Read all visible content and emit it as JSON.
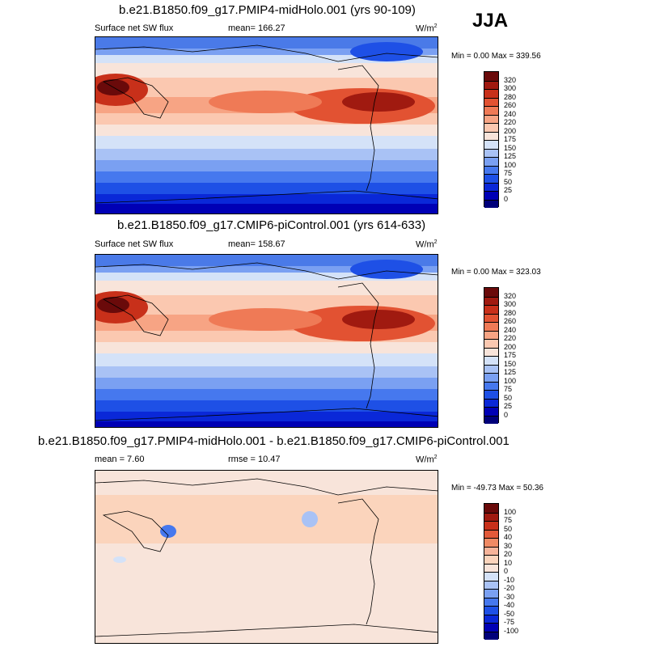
{
  "season": "JJA",
  "panels": [
    {
      "title": "b.e21.B1850.f09_g17.PMIP4-midHolo.001 (yrs 90-109)",
      "left_label": "Surface net SW flux",
      "center_label": "mean= 166.27",
      "units": "W/m",
      "units_sup": "2",
      "minmax": "Min =   0.00 Max = 339.56"
    },
    {
      "title": "b.e21.B1850.f09_g17.CMIP6-piControl.001 (yrs 614-633)",
      "left_label": "Surface net SW flux",
      "center_label": "mean= 158.67",
      "units": "W/m",
      "units_sup": "2",
      "minmax": "Min =   0.00 Max = 323.03"
    },
    {
      "title": "b.e21.B1850.f09_g17.PMIP4-midHolo.001 - b.e21.B1850.f09_g17.CMIP6-piControl.001",
      "left_label": "mean =   7.60",
      "center_label": "rmse =  10.47",
      "units": "W/m",
      "units_sup": "2",
      "minmax": "Min = -49.73 Max =  50.36"
    }
  ],
  "chart_data": [
    {
      "type": "heatmap",
      "title": "b.e21.B1850.f09_g17.PMIP4-midHolo.001 (yrs 90-109)",
      "variable": "Surface net SW flux",
      "units": "W/m2",
      "mean": 166.27,
      "min": 0.0,
      "max": 339.56,
      "colorbar_levels": [
        0,
        25,
        50,
        75,
        100,
        125,
        150,
        175,
        200,
        220,
        240,
        260,
        280,
        300,
        320
      ],
      "colorbar_colors": [
        "#00007a",
        "#0000b5",
        "#0a28d8",
        "#1e50e6",
        "#4678ee",
        "#7aa0f2",
        "#a9c2f5",
        "#d4e2f8",
        "#f8e4da",
        "#fbc8b0",
        "#f7a484",
        "#ef7a56",
        "#e25232",
        "#c8301a",
        "#a01a10",
        "#6a0a0a"
      ]
    },
    {
      "type": "heatmap",
      "title": "b.e21.B1850.f09_g17.CMIP6-piControl.001 (yrs 614-633)",
      "variable": "Surface net SW flux",
      "units": "W/m2",
      "mean": 158.67,
      "min": 0.0,
      "max": 323.03,
      "colorbar_levels": [
        0,
        25,
        50,
        75,
        100,
        125,
        150,
        175,
        200,
        220,
        240,
        260,
        280,
        300,
        320
      ],
      "colorbar_colors": [
        "#00007a",
        "#0000b5",
        "#0a28d8",
        "#1e50e6",
        "#4678ee",
        "#7aa0f2",
        "#a9c2f5",
        "#d4e2f8",
        "#f8e4da",
        "#fbc8b0",
        "#f7a484",
        "#ef7a56",
        "#e25232",
        "#c8301a",
        "#a01a10",
        "#6a0a0a"
      ]
    },
    {
      "type": "heatmap",
      "title": "b.e21.B1850.f09_g17.PMIP4-midHolo.001 - b.e21.B1850.f09_g17.CMIP6-piControl.001",
      "units": "W/m2",
      "mean": 7.6,
      "rmse": 10.47,
      "min": -49.73,
      "max": 50.36,
      "colorbar_levels": [
        -100,
        -75,
        -50,
        -40,
        -30,
        -20,
        -10,
        0,
        10,
        20,
        30,
        40,
        50,
        75,
        100
      ],
      "colorbar_colors": [
        "#00007a",
        "#0000b5",
        "#0a28d8",
        "#1e50e6",
        "#4678ee",
        "#7aa0f2",
        "#a9c2f5",
        "#d4e2f8",
        "#f8e4da",
        "#fbd4bc",
        "#f7b49a",
        "#ef8a64",
        "#e25a3a",
        "#c8301a",
        "#a01a10",
        "#6a0a0a"
      ]
    }
  ]
}
